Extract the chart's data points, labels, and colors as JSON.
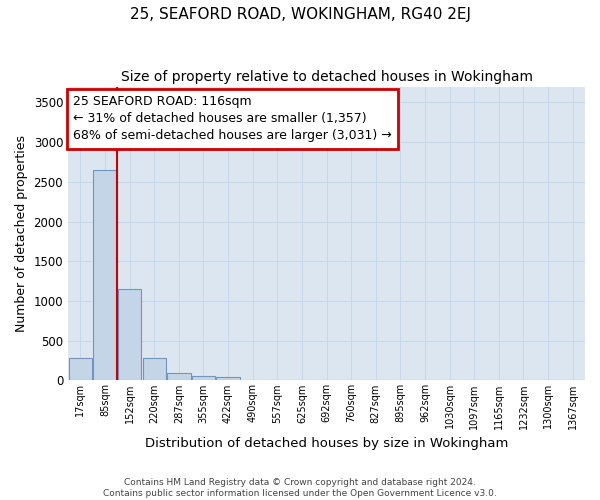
{
  "title": "25, SEAFORD ROAD, WOKINGHAM, RG40 2EJ",
  "subtitle": "Size of property relative to detached houses in Wokingham",
  "xlabel": "Distribution of detached houses by size in Wokingham",
  "ylabel": "Number of detached properties",
  "bin_labels": [
    "17sqm",
    "85sqm",
    "152sqm",
    "220sqm",
    "287sqm",
    "355sqm",
    "422sqm",
    "490sqm",
    "557sqm",
    "625sqm",
    "692sqm",
    "760sqm",
    "827sqm",
    "895sqm",
    "962sqm",
    "1030sqm",
    "1097sqm",
    "1165sqm",
    "1232sqm",
    "1300sqm",
    "1367sqm"
  ],
  "bar_heights": [
    280,
    2650,
    1150,
    280,
    90,
    55,
    40,
    0,
    0,
    0,
    0,
    0,
    0,
    0,
    0,
    0,
    0,
    0,
    0,
    0,
    0
  ],
  "bar_color": "#c5d5e8",
  "bar_edge_color": "#7096be",
  "grid_color": "#c8d8ec",
  "background_color": "#dce6f1",
  "property_line_color": "#cc0000",
  "annotation_text": "25 SEAFORD ROAD: 116sqm\n← 31% of detached houses are smaller (1,357)\n68% of semi-detached houses are larger (3,031) →",
  "annotation_box_color": "#cc0000",
  "annotation_fontsize": 9,
  "ylim": [
    0,
    3700
  ],
  "yticks": [
    0,
    500,
    1000,
    1500,
    2000,
    2500,
    3000,
    3500
  ],
  "footnote": "Contains HM Land Registry data © Crown copyright and database right 2024.\nContains public sector information licensed under the Open Government Licence v3.0.",
  "title_fontsize": 11,
  "subtitle_fontsize": 10,
  "prop_line_bar_index": 1.47
}
